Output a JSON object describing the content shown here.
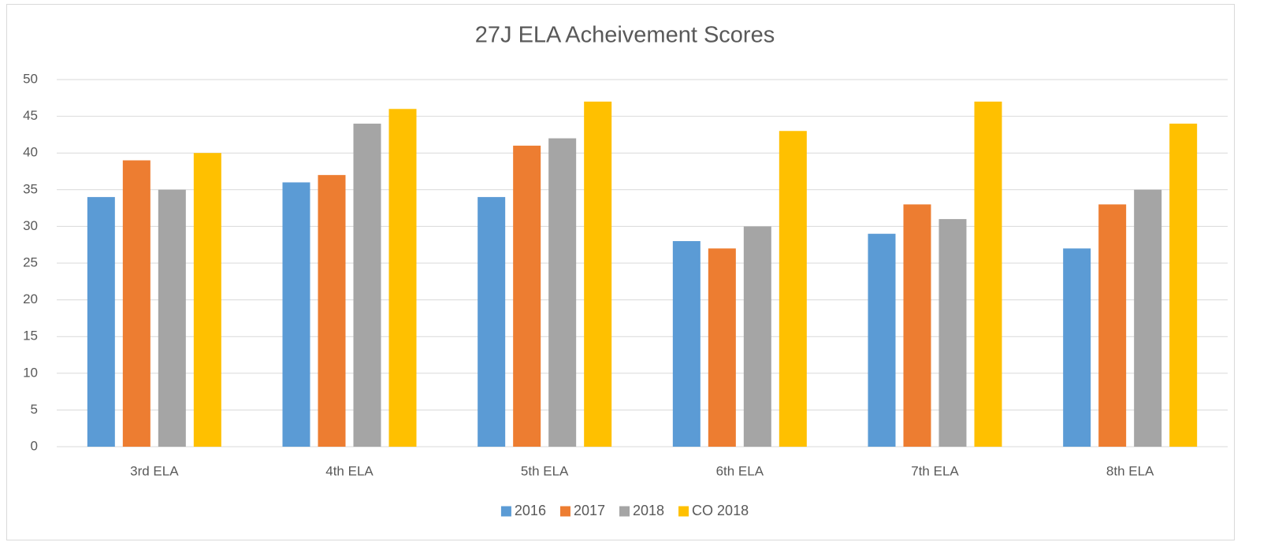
{
  "chart_data": {
    "type": "bar",
    "title": "27J ELA Acheivement Scores",
    "categories": [
      "3rd ELA",
      "4th ELA",
      "5th ELA",
      "6th ELA",
      "7th ELA",
      "8th ELA"
    ],
    "series": [
      {
        "name": "2016",
        "color": "#5b9bd5",
        "values": [
          34,
          36,
          34,
          28,
          29,
          27
        ]
      },
      {
        "name": "2017",
        "color": "#ed7d31",
        "values": [
          39,
          37,
          41,
          27,
          33,
          33
        ]
      },
      {
        "name": "2018",
        "color": "#a5a5a5",
        "values": [
          35,
          44,
          42,
          30,
          31,
          35
        ]
      },
      {
        "name": "CO 2018",
        "color": "#ffc000",
        "values": [
          40,
          46,
          47,
          43,
          47,
          44
        ]
      }
    ],
    "ylim": [
      0,
      50
    ],
    "yticks": [
      0,
      5,
      10,
      15,
      20,
      25,
      30,
      35,
      40,
      45,
      50
    ],
    "grid": true,
    "legend": "bottom"
  }
}
